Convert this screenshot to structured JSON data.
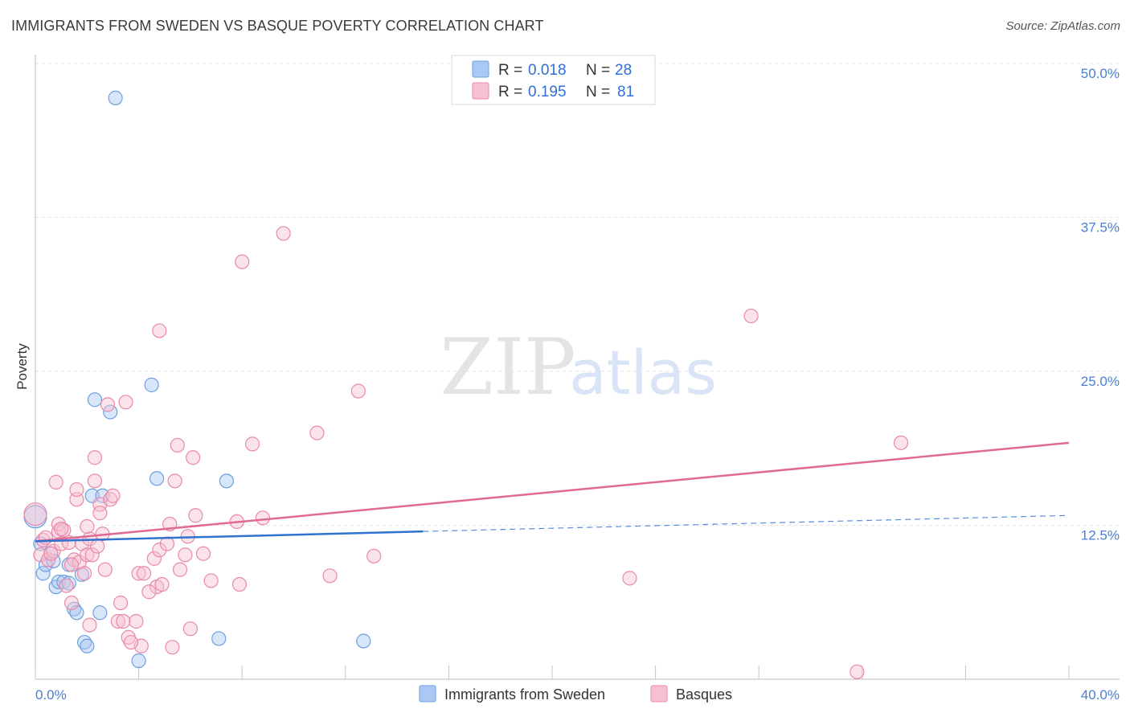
{
  "title": "IMMIGRANTS FROM SWEDEN VS BASQUE POVERTY CORRELATION CHART",
  "source": "Source: ZipAtlas.com",
  "watermark": {
    "zip": "ZIP",
    "atlas": "atlas"
  },
  "legend_stats": [
    {
      "r_label": "R =",
      "r_value": "0.018",
      "n_label": "N =",
      "n_value": "28",
      "color": "#a9c8f3",
      "stroke": "#6f9fe0"
    },
    {
      "r_label": "R =",
      "r_value": "0.195",
      "n_label": "N =",
      "n_value": "81",
      "color": "#f7c0d0",
      "stroke": "#e88aa8"
    }
  ],
  "chart_data": {
    "type": "scatter",
    "title": "IMMIGRANTS FROM SWEDEN VS BASQUE POVERTY CORRELATION CHART",
    "xlabel": "",
    "ylabel": "Poverty",
    "xlim": [
      0,
      40
    ],
    "ylim": [
      0,
      50
    ],
    "x_tick_labels": [
      "0.0%",
      "40.0%"
    ],
    "y_ticks": [
      12.5,
      25.0,
      37.5,
      50.0
    ],
    "y_tick_labels": [
      "12.5%",
      "25.0%",
      "37.5%",
      "50.0%"
    ],
    "grid": true,
    "series": [
      {
        "name": "Immigrants from Sweden",
        "color": "#6f9fe0",
        "fill": "#a9c8f3",
        "trend": {
          "x0": 0,
          "y0": 11.2,
          "x1": 15,
          "y1": 12.0,
          "dash_to": 40,
          "dash_y": 13.3,
          "color": "#2f72d0"
        },
        "points": [
          [
            0.0,
            13.2
          ],
          [
            0.3,
            8.6
          ],
          [
            0.4,
            9.3
          ],
          [
            0.6,
            10.2
          ],
          [
            0.7,
            9.6
          ],
          [
            0.8,
            7.5
          ],
          [
            0.9,
            7.9
          ],
          [
            1.1,
            7.9
          ],
          [
            1.3,
            7.8
          ],
          [
            1.3,
            9.3
          ],
          [
            1.5,
            5.7
          ],
          [
            1.6,
            5.4
          ],
          [
            1.8,
            8.5
          ],
          [
            1.9,
            3.0
          ],
          [
            2.0,
            2.7
          ],
          [
            2.2,
            14.9
          ],
          [
            2.3,
            22.7
          ],
          [
            2.5,
            5.4
          ],
          [
            2.6,
            14.9
          ],
          [
            2.9,
            21.7
          ],
          [
            3.1,
            47.2
          ],
          [
            4.0,
            1.5
          ],
          [
            4.5,
            23.9
          ],
          [
            4.7,
            16.3
          ],
          [
            7.1,
            3.3
          ],
          [
            7.4,
            16.1
          ],
          [
            12.7,
            3.1
          ],
          [
            0.2,
            11.0
          ]
        ]
      },
      {
        "name": "Basques",
        "color": "#e88aa8",
        "fill": "#f7c0d0",
        "trend": {
          "x0": 0,
          "y0": 11.2,
          "x1": 40,
          "y1": 19.2,
          "color": "#e06a94"
        },
        "points": [
          [
            0.0,
            13.4
          ],
          [
            0.2,
            10.1
          ],
          [
            0.3,
            11.3
          ],
          [
            0.5,
            9.7
          ],
          [
            0.7,
            10.4
          ],
          [
            0.9,
            12.0
          ],
          [
            0.8,
            16.0
          ],
          [
            0.9,
            12.6
          ],
          [
            1.0,
            11.0
          ],
          [
            1.1,
            12.1
          ],
          [
            1.2,
            7.6
          ],
          [
            1.3,
            11.1
          ],
          [
            1.4,
            6.2
          ],
          [
            1.5,
            9.7
          ],
          [
            1.6,
            14.6
          ],
          [
            1.6,
            15.4
          ],
          [
            1.7,
            9.5
          ],
          [
            1.8,
            11.0
          ],
          [
            1.9,
            8.6
          ],
          [
            2.0,
            10.1
          ],
          [
            2.1,
            11.4
          ],
          [
            2.1,
            4.4
          ],
          [
            2.2,
            10.1
          ],
          [
            2.3,
            16.1
          ],
          [
            2.3,
            18.0
          ],
          [
            2.5,
            14.2
          ],
          [
            2.5,
            13.5
          ],
          [
            2.6,
            11.8
          ],
          [
            2.7,
            8.9
          ],
          [
            2.8,
            22.3
          ],
          [
            2.9,
            14.6
          ],
          [
            3.0,
            14.9
          ],
          [
            3.2,
            4.7
          ],
          [
            3.3,
            6.2
          ],
          [
            3.4,
            4.7
          ],
          [
            3.5,
            22.5
          ],
          [
            3.6,
            3.4
          ],
          [
            3.9,
            4.7
          ],
          [
            4.0,
            8.6
          ],
          [
            4.1,
            2.7
          ],
          [
            4.2,
            8.6
          ],
          [
            4.6,
            9.8
          ],
          [
            4.7,
            7.5
          ],
          [
            4.8,
            28.3
          ],
          [
            4.8,
            10.5
          ],
          [
            4.9,
            7.7
          ],
          [
            5.1,
            11.0
          ],
          [
            5.2,
            12.6
          ],
          [
            5.3,
            2.6
          ],
          [
            5.4,
            16.1
          ],
          [
            5.5,
            19.0
          ],
          [
            5.6,
            8.9
          ],
          [
            5.8,
            10.1
          ],
          [
            5.9,
            11.6
          ],
          [
            6.0,
            4.1
          ],
          [
            6.1,
            18.0
          ],
          [
            6.2,
            13.3
          ],
          [
            6.5,
            10.2
          ],
          [
            7.8,
            12.8
          ],
          [
            7.9,
            7.7
          ],
          [
            8.0,
            33.9
          ],
          [
            8.4,
            19.1
          ],
          [
            8.8,
            13.1
          ],
          [
            9.6,
            36.2
          ],
          [
            10.9,
            20.0
          ],
          [
            11.4,
            8.4
          ],
          [
            12.5,
            23.4
          ],
          [
            13.1,
            10.0
          ],
          [
            23.0,
            8.2
          ],
          [
            27.7,
            29.5
          ],
          [
            31.8,
            0.6
          ],
          [
            33.5,
            19.2
          ],
          [
            0.6,
            10.2
          ],
          [
            1.4,
            9.3
          ],
          [
            2.0,
            12.4
          ],
          [
            3.7,
            3.0
          ],
          [
            4.4,
            7.1
          ],
          [
            6.8,
            8.0
          ],
          [
            0.4,
            11.5
          ],
          [
            1.0,
            12.2
          ],
          [
            2.4,
            10.8
          ]
        ]
      }
    ]
  }
}
